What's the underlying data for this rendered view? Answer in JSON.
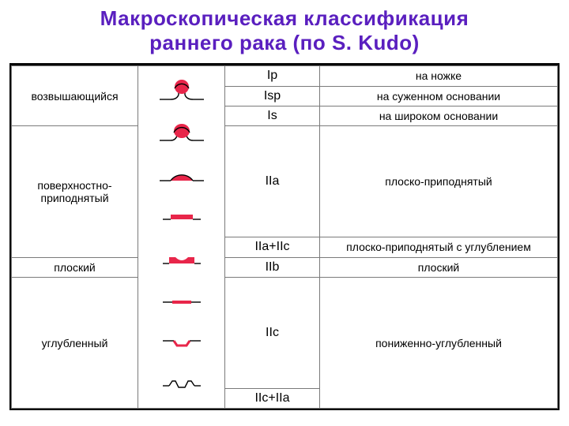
{
  "title_color": "#5a1fbf",
  "table_border_color": "#000000",
  "cell_border_color": "#7a7a7a",
  "icon_stroke": "#000000",
  "icon_fill": "#e8264a",
  "title_line1": "Макроскопическая классификация",
  "title_line2": "раннего рака (по S. Kudo)",
  "groups": {
    "g1": "возвышающийся",
    "g2": "поверхностно-\nприподнятый",
    "g3": "плоский",
    "g4": "углубленный"
  },
  "codes": {
    "ip": "Ip",
    "isp": "Isp",
    "is": "Is",
    "iia": "IIa",
    "iia_iic": "IIa+IIc",
    "iib": "IIb",
    "iic": "IIc",
    "iic_iia": "IIc+IIa"
  },
  "descs": {
    "ip": "на ножке",
    "isp": "на суженном основании",
    "is": "на широком основании",
    "iia": "плоско-приподнятый",
    "iia_iic": "плоско-приподнятый с углублением",
    "iib": "плоский",
    "iic_group": "пониженно-углубленный"
  },
  "icons": [
    "ip",
    "isp",
    "is",
    "iia",
    "iia_iic",
    "iib",
    "iic",
    "iic_iia"
  ]
}
